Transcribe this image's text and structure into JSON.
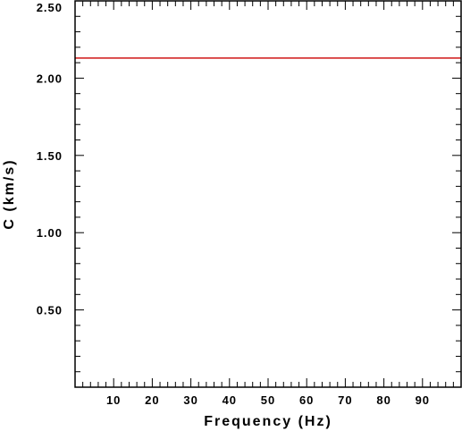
{
  "chart_data": {
    "type": "line",
    "title": "",
    "xlabel": "Frequency (Hz)",
    "ylabel": "C (km/s)",
    "xlim": [
      0,
      100
    ],
    "ylim": [
      0,
      2.5
    ],
    "x_ticks": [
      "10",
      "20",
      "30",
      "40",
      "50",
      "60",
      "70",
      "80",
      "90"
    ],
    "y_ticks": [
      "0.50",
      "1.00",
      "1.50",
      "2.00",
      "2.50"
    ],
    "grid": false,
    "series": [
      {
        "color": "#cc0000",
        "x": [
          0,
          100
        ],
        "y": [
          2.13,
          2.13
        ]
      }
    ]
  }
}
